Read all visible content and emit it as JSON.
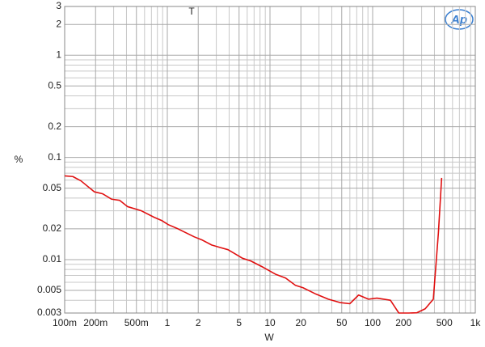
{
  "chart_data": {
    "type": "line",
    "title": "T",
    "xlabel": "W",
    "ylabel": "%",
    "logo": "Ap",
    "xlog": true,
    "ylog": true,
    "grid": true,
    "xlim": [
      0.1,
      1000
    ],
    "ylim": [
      0.003,
      3
    ],
    "xticks": [
      {
        "value": 0.1,
        "label": "100m"
      },
      {
        "value": 0.2,
        "label": "200m"
      },
      {
        "value": 0.5,
        "label": "500m"
      },
      1,
      2,
      5,
      10,
      20,
      50,
      100,
      200,
      500,
      {
        "value": 1000,
        "label": "1k"
      }
    ],
    "yticks": [
      3,
      2,
      1,
      0.5,
      0.2,
      0.1,
      0.05,
      0.02,
      0.01,
      0.005,
      0.003
    ],
    "xminor": [
      0.3,
      0.4,
      0.6,
      0.7,
      0.8,
      0.9,
      3,
      4,
      6,
      7,
      8,
      9,
      30,
      40,
      60,
      70,
      80,
      90,
      300,
      400,
      600,
      700,
      800,
      900
    ],
    "yminor": [
      0.004,
      0.006,
      0.007,
      0.008,
      0.009,
      0.03,
      0.04,
      0.06,
      0.07,
      0.08,
      0.09,
      0.3,
      0.4,
      0.6,
      0.7,
      0.8,
      0.9
    ],
    "series": [
      {
        "color": "#e01010",
        "x": [
          0.1,
          0.12,
          0.144,
          0.195,
          0.235,
          0.287,
          0.344,
          0.41,
          0.56,
          0.74,
          0.89,
          1.02,
          1.27,
          1.83,
          2.2,
          2.7,
          3.3,
          3.9,
          4.5,
          5.4,
          6.5,
          8.6,
          11.3,
          14.2,
          17.7,
          21,
          28,
          37,
          48,
          60,
          73,
          91,
          110,
          149,
          180,
          225,
          270,
          325,
          390,
          437,
          470
        ],
        "values": [
          0.066,
          0.065,
          0.059,
          0.046,
          0.044,
          0.039,
          0.038,
          0.033,
          0.03,
          0.026,
          0.024,
          0.022,
          0.02,
          0.0167,
          0.0155,
          0.0139,
          0.0131,
          0.0125,
          0.0115,
          0.0103,
          0.0097,
          0.0084,
          0.0072,
          0.0066,
          0.0056,
          0.0053,
          0.0046,
          0.0041,
          0.0038,
          0.0037,
          0.0045,
          0.0041,
          0.0042,
          0.004,
          0.003,
          0.003,
          0.00302,
          0.0033,
          0.0041,
          0.0182,
          0.063
        ]
      }
    ]
  }
}
